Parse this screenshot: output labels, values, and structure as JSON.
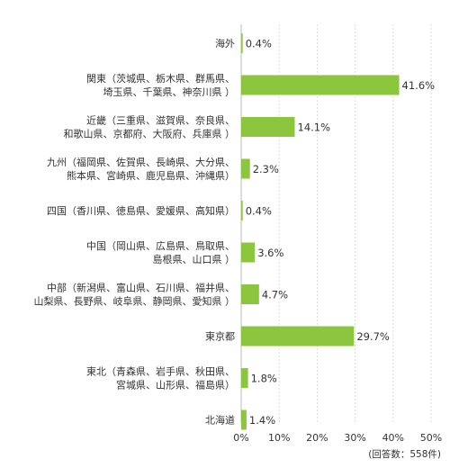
{
  "chart_data": {
    "type": "bar",
    "orientation": "horizontal",
    "categories": [
      [
        "海外"
      ],
      [
        "関東（茨城県、栃木県、群馬県、",
        "埼玉県、千葉県、神奈川県 ）"
      ],
      [
        "近畿（三重県、滋賀県、奈良県、",
        "和歌山県、京都府、大阪府、兵庫県 ）"
      ],
      [
        "九州（福岡県、佐賀県、長崎県、大分県、",
        "熊本県、宮崎県、鹿児島県、沖縄県）"
      ],
      [
        "四国（香川県、徳島県、愛媛県、高知県）"
      ],
      [
        "中国（岡山県、広島県、鳥取県、",
        "島根県、山口県 ）"
      ],
      [
        "中部（新潟県、富山県、石川県、福井県、",
        "山梨県、長野県、岐阜県、静岡県、愛知県 ）"
      ],
      [
        "東京都"
      ],
      [
        "東北（青森県、岩手県、秋田県、",
        "宮城県、山形県、福島県）"
      ],
      [
        "北海道"
      ]
    ],
    "values": [
      0.4,
      41.6,
      14.1,
      2.3,
      0.4,
      3.6,
      4.7,
      29.7,
      1.8,
      1.4
    ],
    "value_labels": [
      "0.4%",
      "41.6%",
      "14.1%",
      "2.3%",
      "0.4%",
      "3.6%",
      "4.7%",
      "29.7%",
      "1.8%",
      "1.4%"
    ],
    "xlim": [
      0,
      50
    ],
    "xticks": [
      0,
      10,
      20,
      30,
      40,
      50
    ],
    "xtick_labels": [
      "0%",
      "10%",
      "20%",
      "30%",
      "40%",
      "50%"
    ],
    "grid": true,
    "bar_color": "#8cc63f",
    "note": "(回答数：558件)"
  }
}
